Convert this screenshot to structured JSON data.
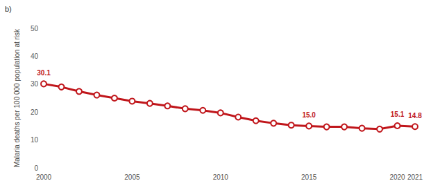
{
  "chart_data": {
    "type": "line",
    "title": "b)",
    "y_label": "Malaria deaths per 100 000 population at risk",
    "x": [
      2000,
      2001,
      2002,
      2003,
      2004,
      2005,
      2006,
      2007,
      2008,
      2009,
      2010,
      2011,
      2012,
      2013,
      2014,
      2015,
      2016,
      2017,
      2018,
      2019,
      2020,
      2021
    ],
    "values": [
      30.1,
      29.0,
      27.4,
      26.1,
      25.0,
      23.9,
      23.1,
      22.2,
      21.2,
      20.6,
      19.7,
      18.2,
      16.9,
      16.0,
      15.3,
      15.0,
      14.7,
      14.7,
      14.2,
      13.9,
      15.1,
      14.8
    ],
    "value_labels": [
      "30.1",
      null,
      null,
      null,
      null,
      null,
      null,
      null,
      null,
      null,
      null,
      null,
      null,
      null,
      null,
      "15.0",
      null,
      null,
      null,
      null,
      "15.1",
      "14.8"
    ],
    "xlim": [
      2000,
      2021
    ],
    "xticks": [
      2000,
      2005,
      2010,
      2015,
      2020,
      2021
    ],
    "ylim": [
      0,
      50
    ],
    "yticks": [
      0,
      10,
      20,
      30,
      40,
      50
    ],
    "color": "#c0161b",
    "marker": "circle",
    "grid": false
  }
}
